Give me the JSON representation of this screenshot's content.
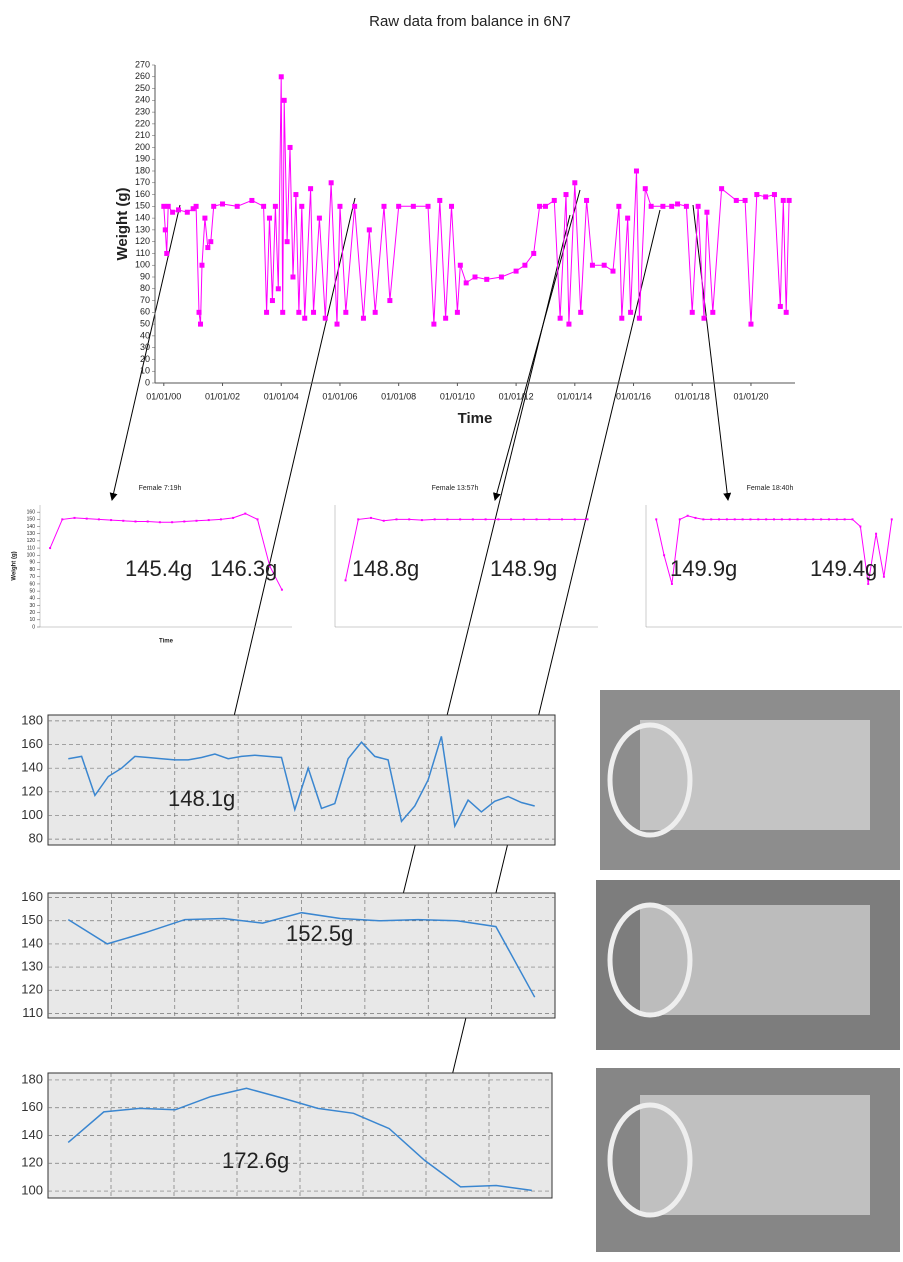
{
  "title": "Raw data from balance in 6N7",
  "chart_data": [
    {
      "type": "line",
      "color": "#ff00ff",
      "marker": true,
      "xlabel": "Time",
      "ylabel": "Weight (g)",
      "xlim": [
        -0.3,
        21.5
      ],
      "ylim": [
        0,
        270
      ],
      "xticks": [
        {
          "value": 0,
          "label": "01/01/00"
        },
        {
          "value": 2,
          "label": "01/01/02"
        },
        {
          "value": 4,
          "label": "01/01/04"
        },
        {
          "value": 6,
          "label": "01/01/06"
        },
        {
          "value": 8,
          "label": "01/01/08"
        },
        {
          "value": 10,
          "label": "01/01/10"
        },
        {
          "value": 12,
          "label": "01/01/12"
        },
        {
          "value": 14,
          "label": "01/01/14"
        },
        {
          "value": 16,
          "label": "01/01/16"
        },
        {
          "value": 18,
          "label": "01/01/18"
        },
        {
          "value": 20,
          "label": "01/01/20"
        }
      ],
      "yticks": [
        0,
        10,
        20,
        30,
        40,
        50,
        60,
        70,
        80,
        90,
        100,
        110,
        120,
        130,
        140,
        150,
        160,
        170,
        180,
        190,
        200,
        210,
        220,
        230,
        240,
        250,
        260,
        270
      ],
      "x": [
        0,
        0.05,
        0.1,
        0.15,
        0.3,
        0.5,
        0.8,
        1.0,
        1.1,
        1.2,
        1.25,
        1.3,
        1.4,
        1.5,
        1.6,
        1.7,
        2,
        2.5,
        3,
        3.4,
        3.5,
        3.6,
        3.7,
        3.8,
        3.9,
        4.0,
        4.05,
        4.1,
        4.2,
        4.3,
        4.4,
        4.5,
        4.6,
        4.7,
        4.8,
        5.0,
        5.1,
        5.3,
        5.5,
        5.7,
        5.9,
        6.0,
        6.2,
        6.5,
        6.8,
        7,
        7.2,
        7.5,
        7.7,
        8,
        8.5,
        9,
        9.2,
        9.4,
        9.6,
        9.8,
        10.0,
        10.1,
        10.3,
        10.6,
        11,
        11.5,
        12,
        12.3,
        12.6,
        12.8,
        13,
        13.3,
        13.5,
        13.7,
        13.8,
        14,
        14.2,
        14.4,
        14.6,
        15,
        15.3,
        15.5,
        15.6,
        15.8,
        15.9,
        16.1,
        16.2,
        16.4,
        16.6,
        17,
        17.3,
        17.5,
        17.8,
        18,
        18.2,
        18.4,
        18.5,
        18.7,
        19,
        19.5,
        19.8,
        20,
        20.2,
        20.5,
        20.8,
        21,
        21.1,
        21.2,
        21.3
      ],
      "values": [
        150,
        130,
        110,
        150,
        145,
        147,
        145,
        148,
        150,
        60,
        50,
        100,
        140,
        115,
        120,
        150,
        152,
        150,
        155,
        150,
        60,
        140,
        70,
        150,
        80,
        260,
        60,
        240,
        120,
        200,
        90,
        160,
        60,
        150,
        55,
        165,
        60,
        140,
        55,
        170,
        50,
        150,
        60,
        150,
        55,
        130,
        60,
        150,
        70,
        150,
        150,
        150,
        50,
        155,
        55,
        150,
        60,
        100,
        85,
        90,
        88,
        90,
        95,
        100,
        110,
        150,
        150,
        155,
        55,
        160,
        50,
        170,
        60,
        155,
        100,
        100,
        95,
        150,
        55,
        140,
        60,
        180,
        55,
        165,
        150,
        150,
        150,
        152,
        150,
        60,
        150,
        55,
        145,
        60,
        165,
        155,
        155,
        50,
        160,
        158,
        160,
        65,
        155,
        60,
        155
      ]
    },
    {
      "type": "line",
      "color": "#ff00ff",
      "marker": true,
      "title": "Female 7:19h",
      "xlabel": "Time",
      "ylabel": "Weight (g)",
      "ylim": [
        0,
        170
      ],
      "yticks": [
        0,
        10,
        20,
        30,
        40,
        50,
        60,
        70,
        80,
        90,
        100,
        110,
        120,
        130,
        140,
        150,
        160
      ],
      "values": [
        110,
        150,
        152,
        151,
        150,
        149,
        148,
        147,
        147,
        146,
        146,
        147,
        148,
        149,
        150,
        152,
        158,
        150,
        85,
        52
      ],
      "annotations": [
        "145.4g",
        "146.3g"
      ]
    },
    {
      "type": "line",
      "color": "#ff00ff",
      "marker": true,
      "title": "Female 13:57h",
      "ylim": [
        0,
        170
      ],
      "values": [
        65,
        150,
        152,
        148,
        150,
        150,
        149,
        150,
        150,
        150,
        150,
        150,
        150,
        150,
        150,
        150,
        150,
        150,
        150,
        150
      ],
      "annotations": [
        "148.8g",
        "148.9g"
      ]
    },
    {
      "type": "line",
      "color": "#ff00ff",
      "marker": true,
      "title": "Female 18:40h",
      "ylim": [
        0,
        170
      ],
      "values": [
        150,
        100,
        60,
        150,
        155,
        152,
        150,
        150,
        150,
        150,
        150,
        150,
        150,
        150,
        150,
        150,
        150,
        150,
        150,
        150,
        150,
        150,
        150,
        150,
        150,
        150,
        140,
        60,
        130,
        70,
        150
      ],
      "annotations": [
        "149.9g",
        "149.4g"
      ]
    },
    {
      "type": "line",
      "color": "#3a86d0",
      "background": "#e8e8e8",
      "grid": true,
      "ylim": [
        75,
        185
      ],
      "yticks": [
        80,
        100,
        120,
        140,
        160,
        180
      ],
      "values": [
        148,
        150,
        117,
        133,
        140,
        150,
        149,
        148,
        147,
        147,
        149,
        152,
        148,
        150,
        151,
        150,
        149,
        105,
        140,
        106,
        110,
        148,
        162,
        150,
        147,
        95,
        108,
        130,
        167,
        91,
        113,
        103,
        112,
        116,
        111,
        108
      ],
      "annotations": [
        "148.1g"
      ]
    },
    {
      "type": "line",
      "color": "#3a86d0",
      "background": "#e8e8e8",
      "grid": true,
      "ylim": [
        108,
        162
      ],
      "yticks": [
        110,
        120,
        130,
        140,
        150,
        160
      ],
      "values": [
        150.5,
        140,
        145,
        150.5,
        151,
        149,
        153.5,
        151,
        150,
        150.5,
        150,
        147.5,
        117
      ],
      "annotations": [
        "152.5g"
      ]
    },
    {
      "type": "line",
      "color": "#3a86d0",
      "background": "#e8e8e8",
      "grid": true,
      "ylim": [
        95,
        185
      ],
      "yticks": [
        100,
        120,
        140,
        160,
        180
      ],
      "values": [
        135,
        157,
        159.5,
        158.5,
        168,
        174,
        167,
        159.5,
        156,
        145,
        122,
        103,
        104,
        100.5
      ],
      "annotations": [
        "172.6g"
      ]
    }
  ]
}
